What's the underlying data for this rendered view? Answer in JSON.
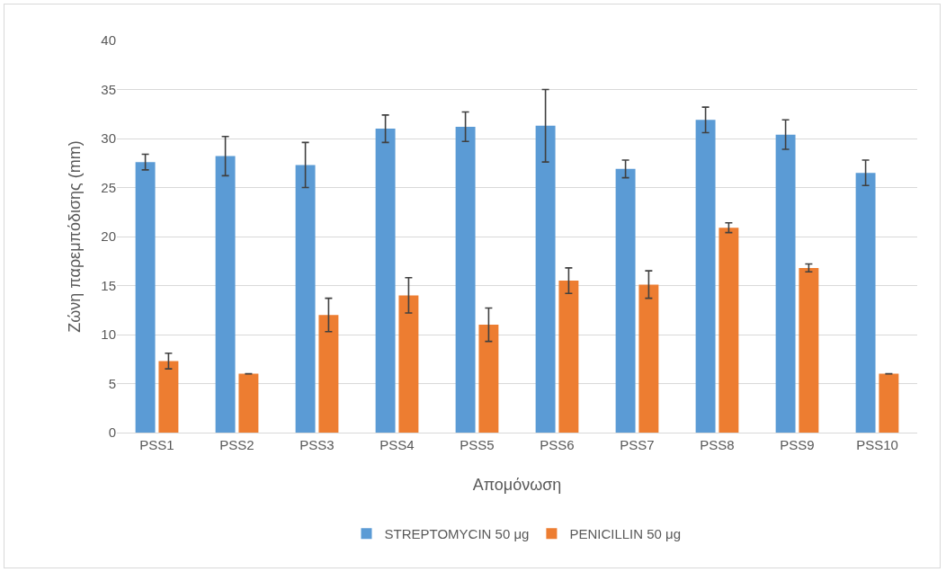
{
  "chart_data": {
    "type": "bar",
    "xlabel": "Απομόνωση",
    "ylabel": "Ζώνη παρεμπόδισης (mm)",
    "categories": [
      "PSS1",
      "PSS2",
      "PSS3",
      "PSS4",
      "PSS5",
      "PSS6",
      "PSS7",
      "PSS8",
      "PSS9",
      "PSS10"
    ],
    "series": [
      {
        "name": "STREPTOMYCIN 50 μg",
        "color": "#5b9bd5",
        "values": [
          27.6,
          28.2,
          27.3,
          31.0,
          31.2,
          31.3,
          26.9,
          31.9,
          30.4,
          26.5
        ],
        "errors": [
          0.8,
          2.0,
          2.3,
          1.4,
          1.5,
          3.7,
          0.9,
          1.3,
          1.5,
          1.3
        ]
      },
      {
        "name": "PENICILLIN 50 μg",
        "color": "#ed7d31",
        "values": [
          7.3,
          6.0,
          12.0,
          14.0,
          11.0,
          15.5,
          15.1,
          20.9,
          16.8,
          6.0
        ],
        "errors": [
          0.8,
          0,
          1.7,
          1.8,
          1.7,
          1.3,
          1.4,
          0.5,
          0.4,
          0
        ]
      }
    ],
    "ylim": [
      0,
      40
    ],
    "yticks": [
      0,
      5,
      10,
      15,
      20,
      25,
      30,
      35,
      40
    ],
    "grid": "y",
    "legend": "bottom"
  }
}
